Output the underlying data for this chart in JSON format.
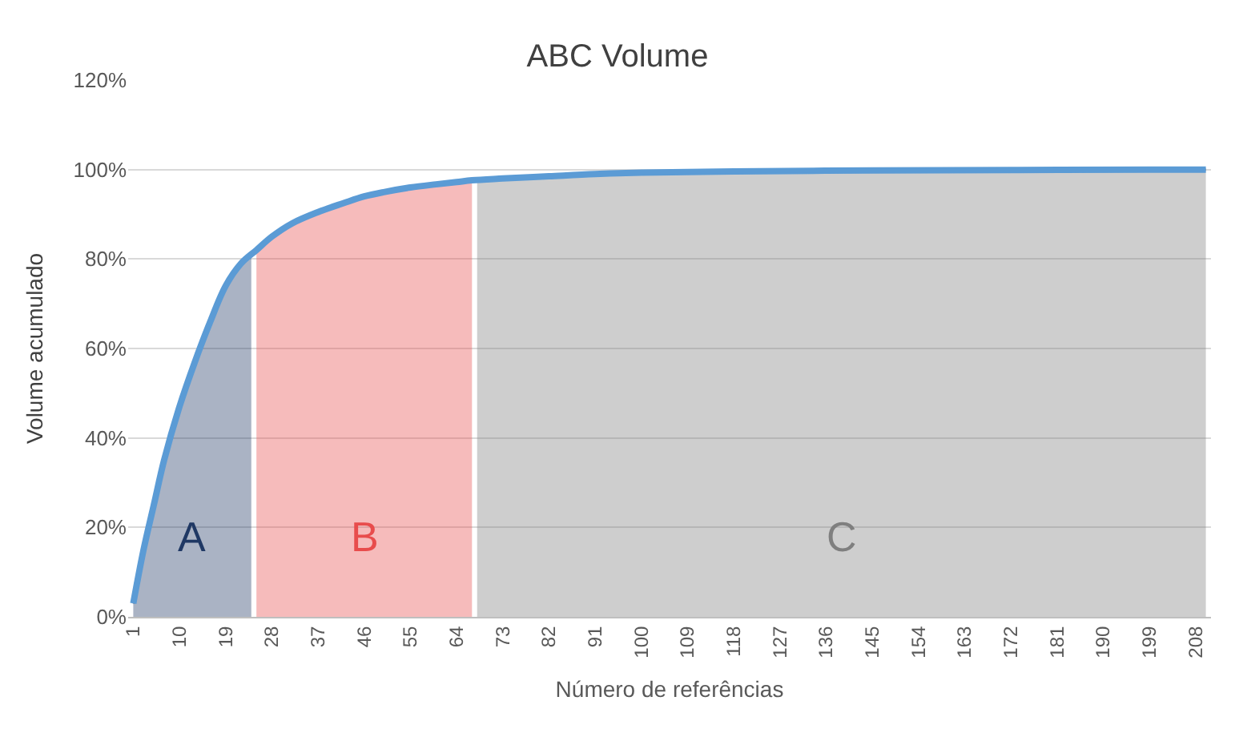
{
  "chart_data": {
    "type": "line",
    "title": "ABC Volume",
    "xlabel": "Número de referências",
    "ylabel": "Volume acumulado",
    "xlim": [
      0,
      211
    ],
    "xticks": [
      1,
      10,
      19,
      28,
      37,
      46,
      55,
      64,
      73,
      82,
      91,
      100,
      109,
      118,
      127,
      136,
      145,
      154,
      163,
      172,
      181,
      190,
      199,
      208
    ],
    "ylim": [
      0,
      120
    ],
    "yticks": [
      {
        "value": 0,
        "label": "0%"
      },
      {
        "value": 20,
        "label": "20%"
      },
      {
        "value": 40,
        "label": "40%"
      },
      {
        "value": 60,
        "label": "60%"
      },
      {
        "value": 80,
        "label": "80%"
      },
      {
        "value": 100,
        "label": "100%"
      },
      {
        "value": 120,
        "label": "120%"
      }
    ],
    "grid": "y",
    "series": [
      {
        "type": "area",
        "name": "A",
        "color": "#1f3864",
        "x": [
          1,
          3,
          5,
          7,
          10,
          13,
          16,
          19,
          22,
          24
        ],
        "values": [
          3,
          15,
          25,
          35,
          47,
          57,
          66,
          74,
          79,
          81
        ]
      },
      {
        "type": "area",
        "name": "B",
        "color": "#e84c4c",
        "x": [
          25,
          28,
          32,
          37,
          42,
          46,
          50,
          55,
          60,
          64,
          67
        ],
        "values": [
          82,
          85,
          88,
          90.5,
          92.5,
          94,
          95,
          96,
          96.7,
          97.2,
          97.6
        ]
      },
      {
        "type": "area",
        "name": "C",
        "color": "#7f7f7f",
        "x": [
          68,
          73,
          82,
          91,
          100,
          118,
          145,
          172,
          199,
          210
        ],
        "values": [
          97.7,
          98,
          98.5,
          99,
          99.3,
          99.6,
          99.8,
          99.9,
          100,
          100
        ]
      },
      {
        "color": "#5b9bd5",
        "x": [
          1,
          3,
          5,
          7,
          10,
          13,
          16,
          19,
          22,
          25,
          28,
          32,
          37,
          42,
          46,
          50,
          55,
          60,
          64,
          67,
          73,
          82,
          91,
          100,
          118,
          145,
          172,
          199,
          210
        ],
        "values": [
          3,
          15,
          25,
          35,
          47,
          57,
          66,
          74,
          79,
          82,
          85,
          88,
          90.5,
          92.5,
          94,
          95,
          96,
          96.7,
          97.2,
          97.6,
          98,
          98.5,
          99,
          99.3,
          99.6,
          99.8,
          99.9,
          100,
          100
        ]
      }
    ]
  }
}
